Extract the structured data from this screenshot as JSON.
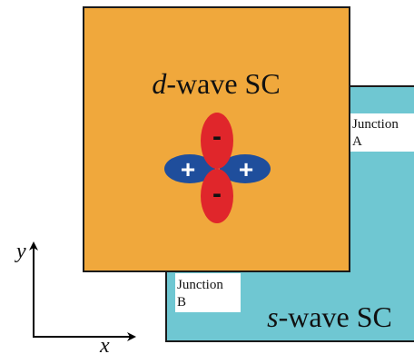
{
  "colors": {
    "d_wave_fill": "#F0A83C",
    "s_wave_fill": "#6FC7D2",
    "border": "#1a1a1a",
    "positive_lobe": "#1F4E9C",
    "negative_lobe": "#E0262B",
    "label_box": "#ffffff"
  },
  "d_wave": {
    "label_italic": "d",
    "label_rest": "-wave SC"
  },
  "s_wave": {
    "label_italic": "s",
    "label_rest": "-wave SC"
  },
  "junction_a": {
    "line1": "Junction",
    "line2": "A"
  },
  "junction_b": {
    "line1": "Junction",
    "line2": "B"
  },
  "orbital": {
    "plus_sign": "+",
    "minus_sign": "-"
  },
  "axes": {
    "x_label": "x",
    "y_label": "y"
  }
}
